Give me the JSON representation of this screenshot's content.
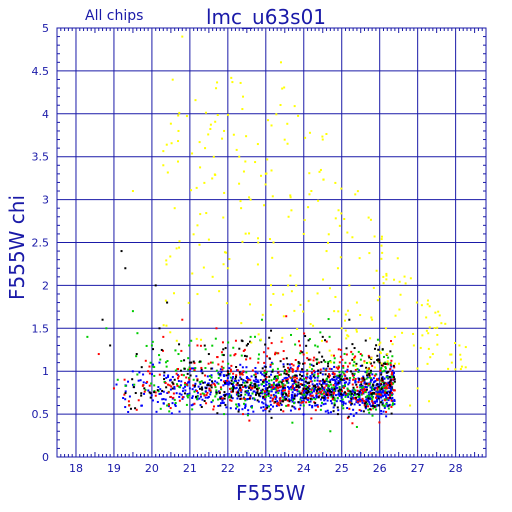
{
  "chart_data": {
    "type": "scatter",
    "title": "lmc_u63s01",
    "subtitle": "All chips",
    "xlabel": "F555W",
    "ylabel": "F555W  chi",
    "xlim": [
      17.5,
      28.8
    ],
    "ylim": [
      0,
      5
    ],
    "xticks": [
      "18",
      "19",
      "20",
      "21",
      "22",
      "23",
      "24",
      "25",
      "26",
      "27",
      "28"
    ],
    "yticks": [
      "0",
      "0.5",
      "1",
      "1.5",
      "2",
      "2.5",
      "3",
      "3.5",
      "4",
      "4.5",
      "5"
    ],
    "grid": true,
    "colors": {
      "axis": "#1a1aa8",
      "chip1": "#000000",
      "chip2": "#ff0000",
      "chip3": "#00cc00",
      "chip4": "#0000ff",
      "bright_tail": "#ffff00"
    },
    "series": [
      {
        "color": "#000000",
        "points": [
          [
            19.2,
            2.4
          ],
          [
            19.3,
            2.2
          ],
          [
            20.1,
            2.0
          ],
          [
            20.4,
            1.8
          ],
          [
            19.6,
            1.2
          ],
          [
            20.2,
            1.5
          ],
          [
            18.7,
            1.6
          ],
          [
            18.9,
            1.3
          ],
          [
            21.0,
            1.1
          ],
          [
            21.5,
            1.2
          ],
          [
            22.0,
            1.0
          ],
          [
            22.5,
            1.3
          ],
          [
            23.1,
            1.15
          ],
          [
            23.8,
            0.95
          ],
          [
            24.5,
            1.4
          ],
          [
            25.2,
            1.6
          ],
          [
            25.6,
            0.9
          ],
          [
            26.0,
            1.1
          ],
          [
            19.8,
            0.8
          ],
          [
            20.6,
            0.9
          ],
          [
            21.8,
            0.6
          ],
          [
            23.4,
            0.55
          ],
          [
            24.9,
            0.5
          ],
          [
            22.7,
            0.85
          ]
        ]
      },
      {
        "color": "#ff0000",
        "points": [
          [
            18.6,
            1.2
          ],
          [
            19.0,
            0.8
          ],
          [
            19.4,
            0.6
          ],
          [
            19.9,
            1.0
          ],
          [
            20.3,
            1.4
          ],
          [
            20.8,
            1.6
          ],
          [
            21.2,
            1.3
          ],
          [
            21.7,
            1.5
          ],
          [
            22.2,
            1.2
          ],
          [
            22.8,
            1.1
          ],
          [
            23.3,
            0.9
          ],
          [
            23.9,
            1.3
          ],
          [
            24.4,
            1.1
          ],
          [
            24.8,
            0.75
          ],
          [
            25.3,
            0.9
          ],
          [
            25.8,
            0.65
          ],
          [
            26.2,
            0.8
          ],
          [
            19.6,
            0.55
          ],
          [
            20.5,
            0.7
          ],
          [
            21.4,
            0.95
          ],
          [
            22.4,
            0.5
          ],
          [
            23.6,
            0.6
          ],
          [
            24.2,
            0.45
          ],
          [
            25.5,
            1.2
          ]
        ]
      },
      {
        "color": "#00cc00",
        "points": [
          [
            18.3,
            1.4
          ],
          [
            18.8,
            1.5
          ],
          [
            19.5,
            1.7
          ],
          [
            20.0,
            1.3
          ],
          [
            20.7,
            1.2
          ],
          [
            21.1,
            0.9
          ],
          [
            21.6,
            1.1
          ],
          [
            22.1,
            0.8
          ],
          [
            22.6,
            1.4
          ],
          [
            23.0,
            0.7
          ],
          [
            23.5,
            1.0
          ],
          [
            24.0,
            0.6
          ],
          [
            24.6,
            0.9
          ],
          [
            25.1,
            0.7
          ],
          [
            25.7,
            0.55
          ],
          [
            26.1,
            0.6
          ],
          [
            19.1,
            0.9
          ],
          [
            20.4,
            0.6
          ],
          [
            21.9,
            0.5
          ],
          [
            23.7,
            0.4
          ],
          [
            24.7,
            0.3
          ],
          [
            25.4,
            0.35
          ],
          [
            22.9,
            1.6
          ],
          [
            24.3,
            1.3
          ]
        ]
      },
      {
        "color": "#0000ff",
        "points": [
          [
            20.5,
            0.9
          ],
          [
            21.0,
            0.8
          ],
          [
            21.5,
            0.7
          ],
          [
            22.0,
            0.85
          ],
          [
            22.5,
            0.75
          ],
          [
            23.0,
            0.8
          ],
          [
            23.5,
            0.7
          ],
          [
            24.0,
            0.75
          ],
          [
            24.5,
            0.8
          ],
          [
            25.0,
            0.7
          ],
          [
            25.5,
            0.75
          ],
          [
            26.0,
            0.7
          ],
          [
            26.3,
            0.8
          ],
          [
            21.3,
            1.0
          ],
          [
            22.3,
            0.6
          ],
          [
            23.3,
            0.65
          ],
          [
            24.3,
            0.6
          ],
          [
            25.3,
            0.55
          ],
          [
            20.2,
            1.1
          ],
          [
            21.8,
            0.95
          ],
          [
            23.8,
            1.0
          ],
          [
            24.8,
            1.05
          ],
          [
            25.8,
            0.9
          ],
          [
            26.2,
            0.6
          ]
        ]
      },
      {
        "color": "#ffff00",
        "points": [
          [
            20.8,
            4.9
          ],
          [
            20.7,
            3.8
          ],
          [
            20.3,
            3.4
          ],
          [
            21.4,
            3.6
          ],
          [
            21.9,
            3.8
          ],
          [
            22.3,
            3.5
          ],
          [
            22.4,
            4.2
          ],
          [
            22.6,
            3.0
          ],
          [
            23.0,
            3.3
          ],
          [
            23.4,
            4.6
          ],
          [
            23.6,
            2.8
          ],
          [
            24.0,
            2.6
          ],
          [
            24.2,
            3.1
          ],
          [
            24.5,
            3.7
          ],
          [
            24.6,
            2.4
          ],
          [
            24.9,
            2.2
          ],
          [
            25.2,
            2.0
          ],
          [
            25.4,
            1.8
          ],
          [
            25.8,
            1.6
          ],
          [
            26.4,
            1.4
          ],
          [
            26.9,
            1.3
          ],
          [
            27.4,
            1.2
          ],
          [
            27.9,
            1.1
          ],
          [
            28.1,
            1.3
          ],
          [
            26.6,
            1.0
          ],
          [
            27.0,
            0.8
          ],
          [
            26.8,
            0.6
          ],
          [
            27.3,
            0.65
          ],
          [
            22.0,
            2.2
          ],
          [
            21.2,
            2.7
          ],
          [
            20.6,
            2.9
          ],
          [
            23.8,
            2.0
          ],
          [
            25.0,
            1.5
          ],
          [
            26.2,
            1.2
          ],
          [
            22.8,
            2.5
          ],
          [
            21.6,
            2.1
          ],
          [
            25.6,
            1.1
          ],
          [
            23.2,
            1.9
          ],
          [
            24.8,
            1.7
          ],
          [
            19.5,
            3.1
          ]
        ]
      }
    ]
  }
}
